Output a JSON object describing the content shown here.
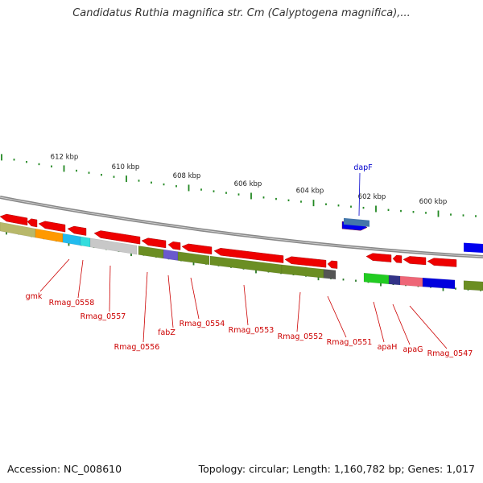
{
  "title": "Candidatus Ruthia magnifica str. Cm (Calyptogena magnifica),...",
  "footer": {
    "accession": "Accession: NC_008610",
    "genome_info": "Topology: circular; Length: 1,160,782 bp; Genes: 1,017"
  },
  "scale": {
    "labels": [
      "612 kbp",
      "610 kbp",
      "608 kbp",
      "606 kbp",
      "604 kbp",
      "602 kbp",
      "600 kbp"
    ]
  },
  "genes": [
    {
      "label": "gmk",
      "color": "#cc0000"
    },
    {
      "label": "Rmag_0558",
      "color": "#cc0000"
    },
    {
      "label": "Rmag_0557",
      "color": "#cc0000"
    },
    {
      "label": "Rmag_0556",
      "color": "#cc0000"
    },
    {
      "label": "fabZ",
      "color": "#cc0000"
    },
    {
      "label": "Rmag_0554",
      "color": "#cc0000"
    },
    {
      "label": "Rmag_0553",
      "color": "#cc0000"
    },
    {
      "label": "Rmag_0552",
      "color": "#cc0000"
    },
    {
      "label": "Rmag_0551",
      "color": "#cc0000"
    },
    {
      "label": "apaH",
      "color": "#cc0000"
    },
    {
      "label": "apaG",
      "color": "#cc0000"
    },
    {
      "label": "Rmag_0547",
      "color": "#cc0000"
    },
    {
      "label": "dapF",
      "color": "#0000cc"
    }
  ],
  "colors": {
    "gene_arrow": "#ee0000",
    "backbone": "#888888",
    "tick_major": "#228822",
    "tick_minor": "#2a7a2a",
    "label_red": "#cc0000",
    "label_blue": "#0000cc"
  }
}
